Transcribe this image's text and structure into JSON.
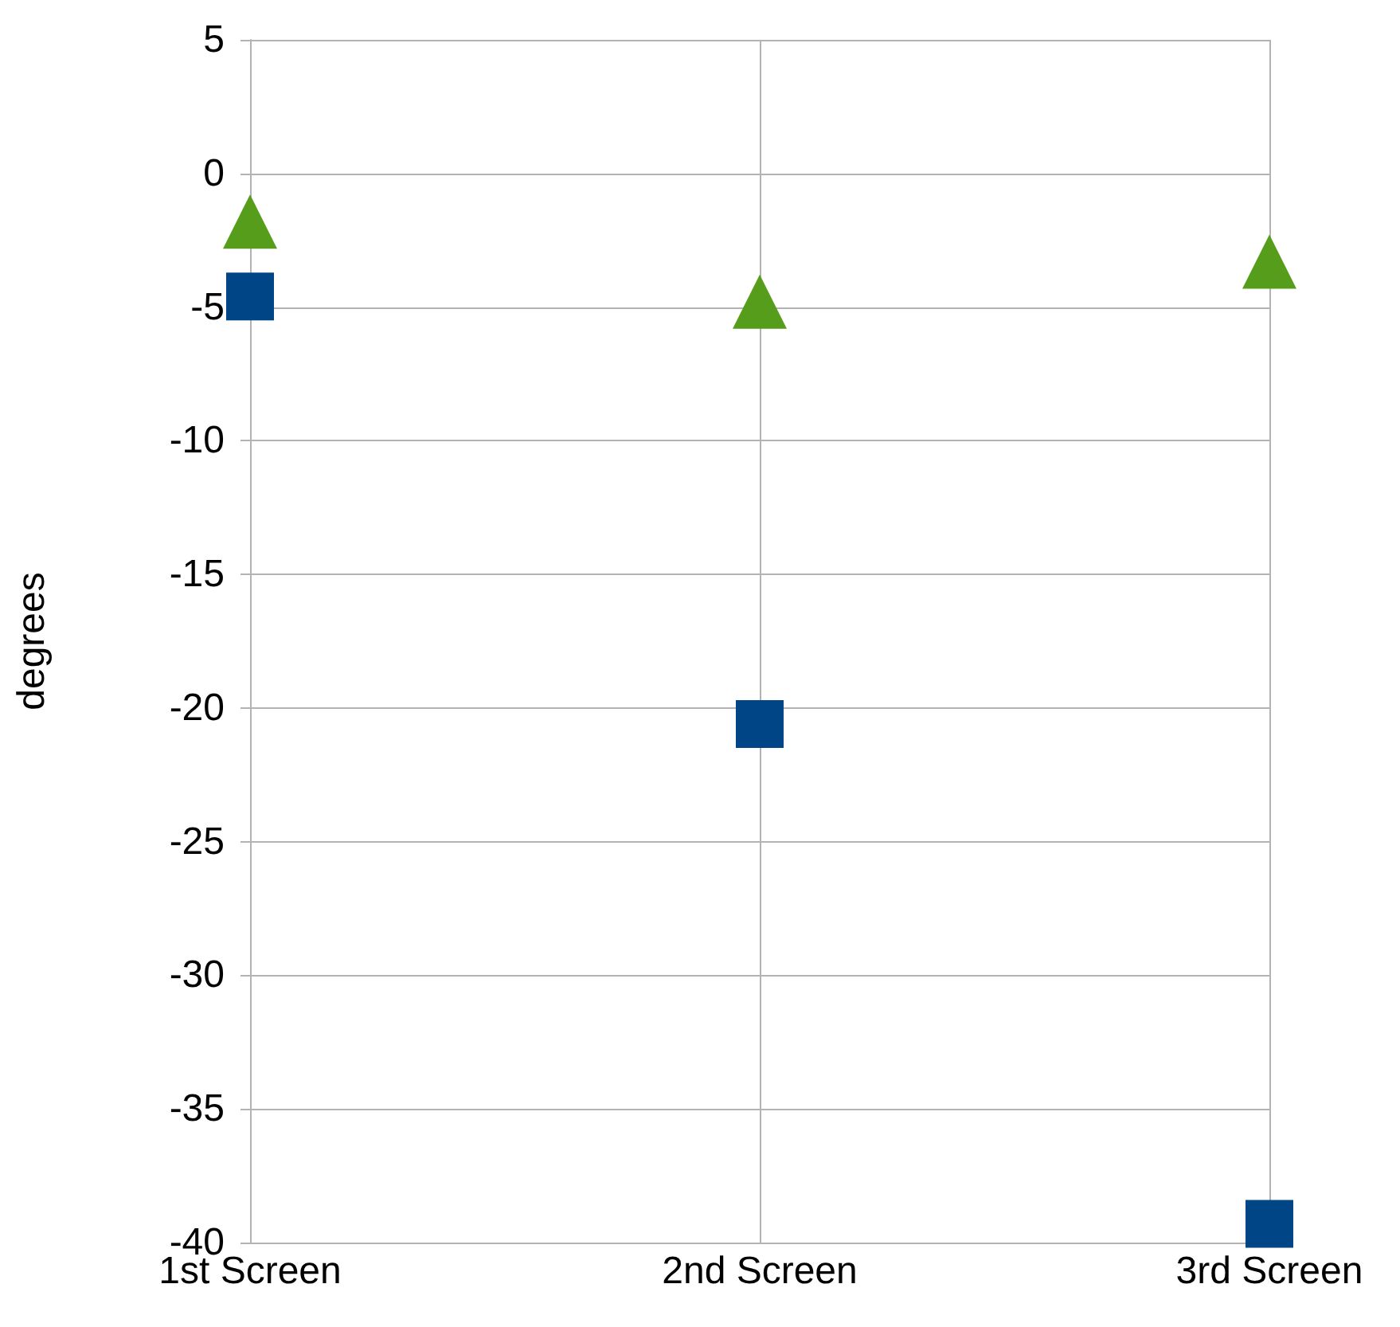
{
  "chart_data": {
    "type": "scatter",
    "ylabel": "degrees",
    "categories": [
      "1st Screen",
      "2nd Screen",
      "3rd Screen"
    ],
    "series": [
      {
        "color": "#579d1c",
        "marker": "triangle",
        "values": [
          -1.8,
          -4.8,
          -3.3
        ]
      },
      {
        "color": "#004586",
        "marker": "square",
        "values": [
          -4.6,
          -20.6,
          -39.3
        ]
      }
    ],
    "ylim": [
      -40,
      5
    ],
    "yticks": [
      -40,
      -35,
      -30,
      -25,
      -20,
      -15,
      -10,
      -5,
      0,
      5
    ],
    "grid": true
  }
}
